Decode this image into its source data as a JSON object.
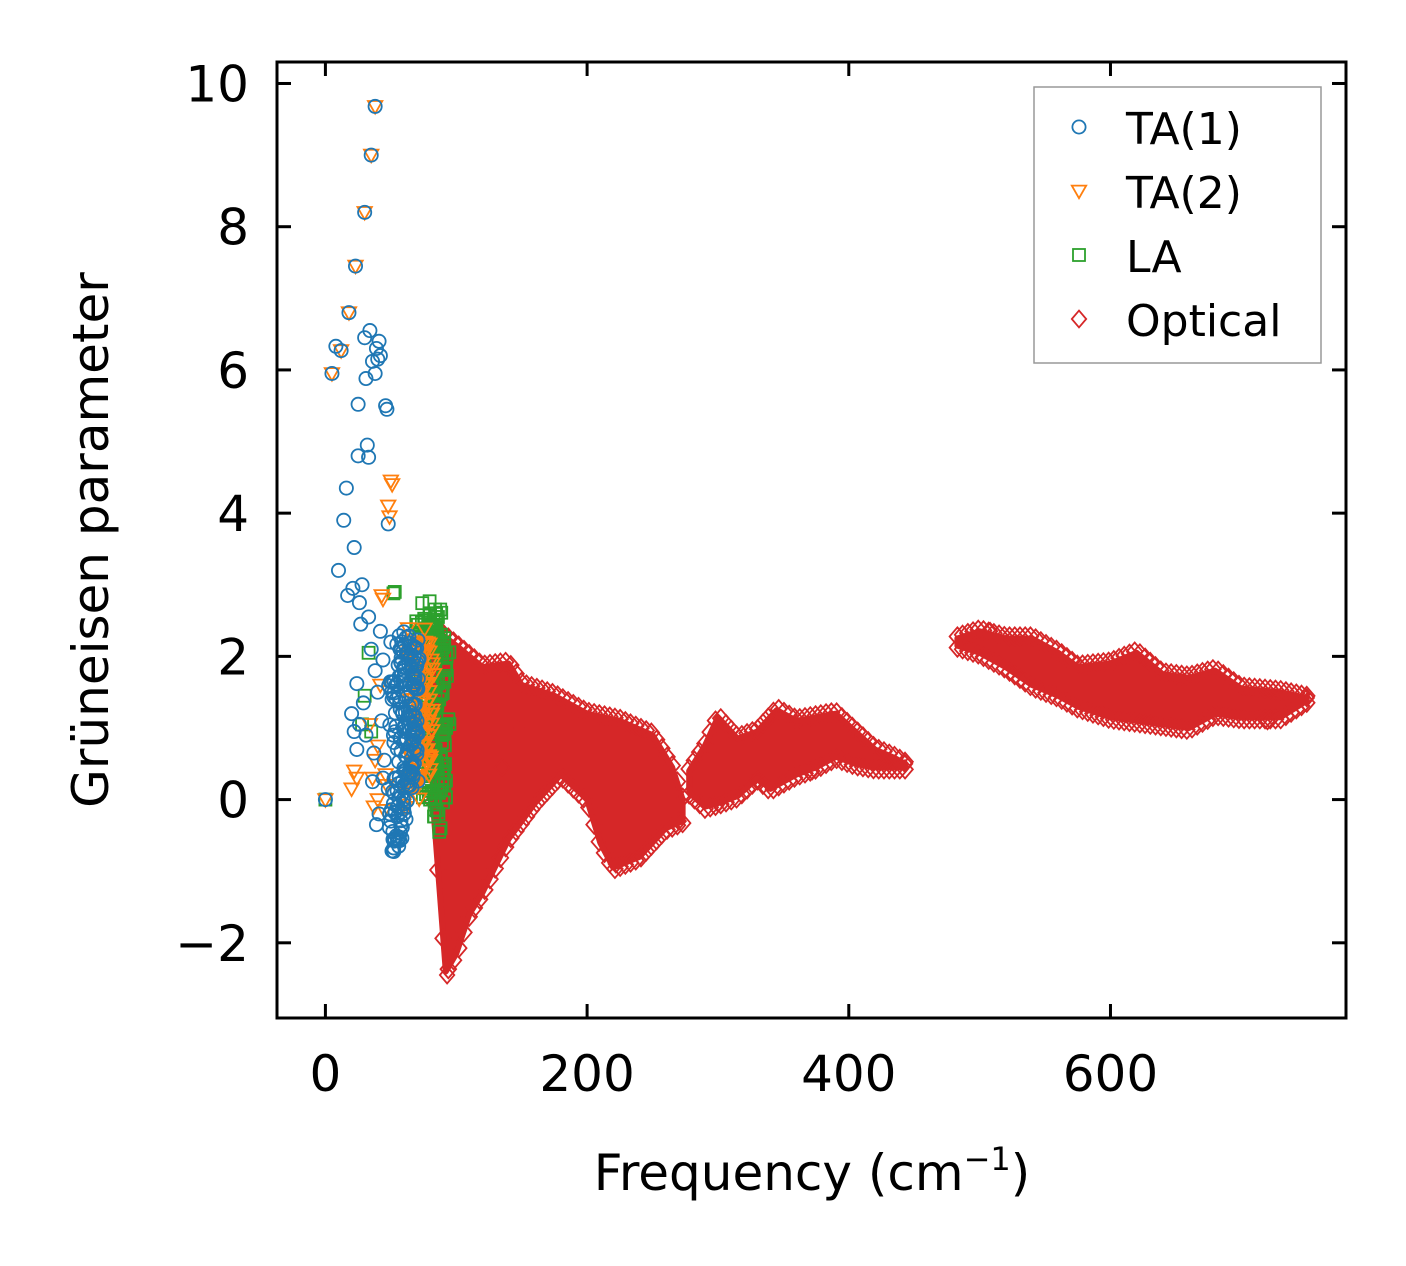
{
  "chart_data": {
    "type": "scatter",
    "title": "",
    "xlabel": "Frequency (cm",
    "xlabel_sup": "−1",
    "xlabel_close": ")",
    "ylabel": "Grüneisen parameter",
    "xlim": [
      -37,
      780
    ],
    "ylim": [
      -3.05,
      10.3
    ],
    "x_ticks": [
      0,
      200,
      400,
      600
    ],
    "x_tick_labels": [
      "0",
      "200",
      "400",
      "600"
    ],
    "y_ticks": [
      -2,
      0,
      2,
      4,
      6,
      8,
      10
    ],
    "y_tick_labels": [
      "−2",
      "0",
      "2",
      "4",
      "6",
      "8",
      "10"
    ],
    "grid": false,
    "legend_position": "top-right",
    "series": [
      {
        "name": "TA(1)",
        "marker": "circle",
        "color": "#1f77b4",
        "points": [
          [
            0,
            0.0
          ],
          [
            5,
            5.95
          ],
          [
            8,
            6.33
          ],
          [
            12,
            6.27
          ],
          [
            14,
            3.9
          ],
          [
            16,
            4.35
          ],
          [
            18,
            6.8
          ],
          [
            20,
            1.2
          ],
          [
            22,
            3.52
          ],
          [
            23,
            7.45
          ],
          [
            24,
            1.62
          ],
          [
            25,
            4.8
          ],
          [
            25,
            5.52
          ],
          [
            26,
            2.75
          ],
          [
            28,
            3.0
          ],
          [
            30,
            8.2
          ],
          [
            30,
            6.45
          ],
          [
            31,
            5.88
          ],
          [
            32,
            4.95
          ],
          [
            33,
            4.78
          ],
          [
            34,
            6.55
          ],
          [
            35,
            9.0
          ],
          [
            36,
            6.12
          ],
          [
            38,
            9.68
          ],
          [
            38,
            5.95
          ],
          [
            39,
            6.3
          ],
          [
            40,
            6.15
          ],
          [
            41,
            6.4
          ],
          [
            42,
            6.2
          ],
          [
            46,
            5.5
          ],
          [
            47,
            5.45
          ],
          [
            48,
            3.85
          ],
          [
            10,
            3.2
          ],
          [
            17,
            2.85
          ],
          [
            21,
            2.95
          ],
          [
            27,
            2.45
          ],
          [
            33,
            2.55
          ],
          [
            35,
            2.1
          ],
          [
            38,
            1.8
          ],
          [
            40,
            1.5
          ],
          [
            37,
            0.65
          ],
          [
            39,
            -0.35
          ],
          [
            36,
            0.25
          ],
          [
            42,
            2.35
          ],
          [
            44,
            0.3
          ],
          [
            31,
            0.9
          ],
          [
            29,
            1.35
          ],
          [
            24,
            0.7
          ],
          [
            26,
            1.05
          ],
          [
            43,
            1.1
          ],
          [
            45,
            0.55
          ],
          [
            41,
            -0.2
          ],
          [
            50,
            2.2
          ],
          [
            48,
            0.15
          ],
          [
            44,
            1.95
          ],
          [
            22,
            0.95
          ]
        ],
        "band_points": [
          [
            50,
            -0.3
          ],
          [
            52,
            0.9
          ],
          [
            53,
            -0.55
          ],
          [
            55,
            1.6
          ],
          [
            54,
            0.3
          ],
          [
            56,
            -0.65
          ],
          [
            57,
            2.1
          ],
          [
            58,
            0.05
          ],
          [
            59,
            1.2
          ],
          [
            60,
            -0.2
          ],
          [
            61,
            1.85
          ],
          [
            62,
            0.6
          ],
          [
            63,
            2.05
          ],
          [
            64,
            1.3
          ],
          [
            65,
            0.35
          ],
          [
            66,
            1.75
          ],
          [
            67,
            0.95
          ],
          [
            68,
            2.1
          ],
          [
            69,
            1.55
          ],
          [
            70,
            1.1
          ],
          [
            51,
            1.4
          ],
          [
            55,
            -0.1
          ],
          [
            58,
            1.9
          ],
          [
            60,
            0.8
          ],
          [
            63,
            0.2
          ],
          [
            66,
            1.0
          ],
          [
            68,
            0.5
          ],
          [
            70,
            1.9
          ]
        ]
      },
      {
        "name": "TA(2)",
        "marker": "triangle-down",
        "color": "#ff7f0e",
        "points": [
          [
            0,
            0.0
          ],
          [
            5,
            5.95
          ],
          [
            12,
            6.27
          ],
          [
            18,
            6.8
          ],
          [
            23,
            7.45
          ],
          [
            30,
            8.2
          ],
          [
            35,
            9.0
          ],
          [
            38,
            9.68
          ],
          [
            22,
            0.4
          ],
          [
            20,
            0.15
          ],
          [
            34,
            1.05
          ],
          [
            36,
            0.3
          ],
          [
            38,
            0.55
          ],
          [
            40,
            0.75
          ],
          [
            42,
            1.6
          ],
          [
            43,
            2.85
          ],
          [
            44,
            2.8
          ],
          [
            46,
            0.35
          ],
          [
            48,
            4.1
          ],
          [
            49,
            3.95
          ],
          [
            50,
            4.45
          ],
          [
            51,
            4.4
          ],
          [
            40,
            0.0
          ],
          [
            45,
            -0.15
          ],
          [
            47,
            0.2
          ],
          [
            37,
            -0.1
          ],
          [
            24,
            0.3
          ]
        ],
        "band_points": [
          [
            62,
            0.1
          ],
          [
            64,
            2.15
          ],
          [
            66,
            0.6
          ],
          [
            68,
            1.4
          ],
          [
            70,
            0.9
          ],
          [
            72,
            1.8
          ],
          [
            74,
            0.4
          ],
          [
            75,
            1.25
          ],
          [
            76,
            2.2
          ],
          [
            77,
            0.8
          ],
          [
            78,
            1.6
          ],
          [
            79,
            1.1
          ],
          [
            80,
            0.55
          ],
          [
            81,
            1.95
          ],
          [
            73,
            1.0
          ],
          [
            71,
            0.2
          ],
          [
            69,
            1.7
          ],
          [
            67,
            0.3
          ]
        ]
      },
      {
        "name": "LA",
        "marker": "square",
        "color": "#2ca02c",
        "points": [
          [
            0,
            0.0
          ],
          [
            53,
            2.9
          ],
          [
            52,
            2.88
          ],
          [
            33,
            2.05
          ],
          [
            30,
            1.45
          ],
          [
            35,
            0.95
          ],
          [
            28,
            1.05
          ],
          [
            80,
            0.0
          ],
          [
            83,
            0.1
          ],
          [
            85,
            -0.15
          ],
          [
            88,
            -0.4
          ],
          [
            87,
            -0.45
          ]
        ],
        "band_points": [
          [
            72,
            2.3
          ],
          [
            74,
            0.9
          ],
          [
            76,
            2.5
          ],
          [
            78,
            1.5
          ],
          [
            79,
            0.4
          ],
          [
            80,
            2.6
          ],
          [
            81,
            1.1
          ],
          [
            82,
            2.2
          ],
          [
            83,
            0.6
          ],
          [
            84,
            1.8
          ],
          [
            85,
            2.4
          ],
          [
            86,
            0.3
          ],
          [
            87,
            1.4
          ],
          [
            88,
            2.1
          ],
          [
            89,
            0.8
          ],
          [
            90,
            1.7
          ],
          [
            91,
            0.2
          ],
          [
            92,
            2.05
          ],
          [
            77,
            0.2
          ],
          [
            84,
            0.0
          ],
          [
            90,
            0.5
          ],
          [
            75,
            1.6
          ],
          [
            86,
            2.55
          ],
          [
            92,
            1.0
          ]
        ]
      },
      {
        "name": "Optical",
        "marker": "diamond",
        "color": "#d62728",
        "bands": [
          {
            "label": "optical-band-1",
            "x_start": 82,
            "x_end": 273,
            "upper": [
              [
                82,
                2.4
              ],
              [
                100,
                2.15
              ],
              [
                120,
                1.85
              ],
              [
                140,
                1.9
              ],
              [
                150,
                1.6
              ],
              [
                175,
                1.45
              ],
              [
                200,
                1.2
              ],
              [
                225,
                1.1
              ],
              [
                250,
                0.9
              ],
              [
                265,
                0.45
              ],
              [
                273,
                0.0
              ]
            ],
            "lower": [
              [
                82,
                0.0
              ],
              [
                92,
                -2.4
              ],
              [
                100,
                -2.15
              ],
              [
                110,
                -1.6
              ],
              [
                120,
                -1.3
              ],
              [
                140,
                -0.55
              ],
              [
                160,
                -0.05
              ],
              [
                180,
                0.35
              ],
              [
                200,
                0.0
              ],
              [
                210,
                -0.6
              ],
              [
                220,
                -0.95
              ],
              [
                240,
                -0.8
              ],
              [
                260,
                -0.4
              ],
              [
                273,
                -0.3
              ]
            ]
          },
          {
            "label": "optical-band-2",
            "x_start": 278,
            "x_end": 443,
            "upper": [
              [
                278,
                0.4
              ],
              [
                290,
                0.75
              ],
              [
                300,
                1.15
              ],
              [
                315,
                0.85
              ],
              [
                330,
                0.95
              ],
              [
                345,
                1.25
              ],
              [
                360,
                1.1
              ],
              [
                375,
                1.15
              ],
              [
                390,
                1.2
              ],
              [
                405,
                0.95
              ],
              [
                420,
                0.7
              ],
              [
                435,
                0.58
              ],
              [
                443,
                0.5
              ]
            ],
            "lower": [
              [
                278,
                0.1
              ],
              [
                290,
                -0.1
              ],
              [
                300,
                -0.05
              ],
              [
                315,
                0.05
              ],
              [
                330,
                0.3
              ],
              [
                340,
                0.15
              ],
              [
                360,
                0.35
              ],
              [
                375,
                0.45
              ],
              [
                390,
                0.6
              ],
              [
                405,
                0.5
              ],
              [
                420,
                0.45
              ],
              [
                435,
                0.45
              ],
              [
                443,
                0.45
              ]
            ]
          },
          {
            "label": "optical-band-3",
            "x_start": 483,
            "x_end": 750,
            "upper": [
              [
                483,
                2.25
              ],
              [
                500,
                2.35
              ],
              [
                520,
                2.25
              ],
              [
                540,
                2.25
              ],
              [
                560,
                2.05
              ],
              [
                575,
                1.85
              ],
              [
                600,
                1.9
              ],
              [
                620,
                2.05
              ],
              [
                640,
                1.75
              ],
              [
                660,
                1.7
              ],
              [
                680,
                1.8
              ],
              [
                700,
                1.55
              ],
              [
                730,
                1.5
              ],
              [
                750,
                1.42
              ]
            ],
            "lower": [
              [
                483,
                2.15
              ],
              [
                500,
                2.05
              ],
              [
                520,
                1.85
              ],
              [
                540,
                1.6
              ],
              [
                560,
                1.45
              ],
              [
                575,
                1.3
              ],
              [
                600,
                1.15
              ],
              [
                620,
                1.1
              ],
              [
                640,
                1.05
              ],
              [
                660,
                1.0
              ],
              [
                680,
                1.2
              ],
              [
                700,
                1.15
              ],
              [
                730,
                1.15
              ],
              [
                750,
                1.38
              ]
            ]
          }
        ],
        "points": [
          [
            148,
            1.0
          ],
          [
            135,
            0.45
          ],
          [
            222,
            -0.9
          ],
          [
            93,
            -2.45
          ],
          [
            270,
            -0.3
          ],
          [
            300,
            -0.05
          ],
          [
            372,
            0.4
          ],
          [
            443,
            0.5
          ],
          [
            490,
            2.2
          ],
          [
            720,
            1.1
          ],
          [
            750,
            1.42
          ],
          [
            508,
            2.35
          ]
        ]
      }
    ]
  }
}
